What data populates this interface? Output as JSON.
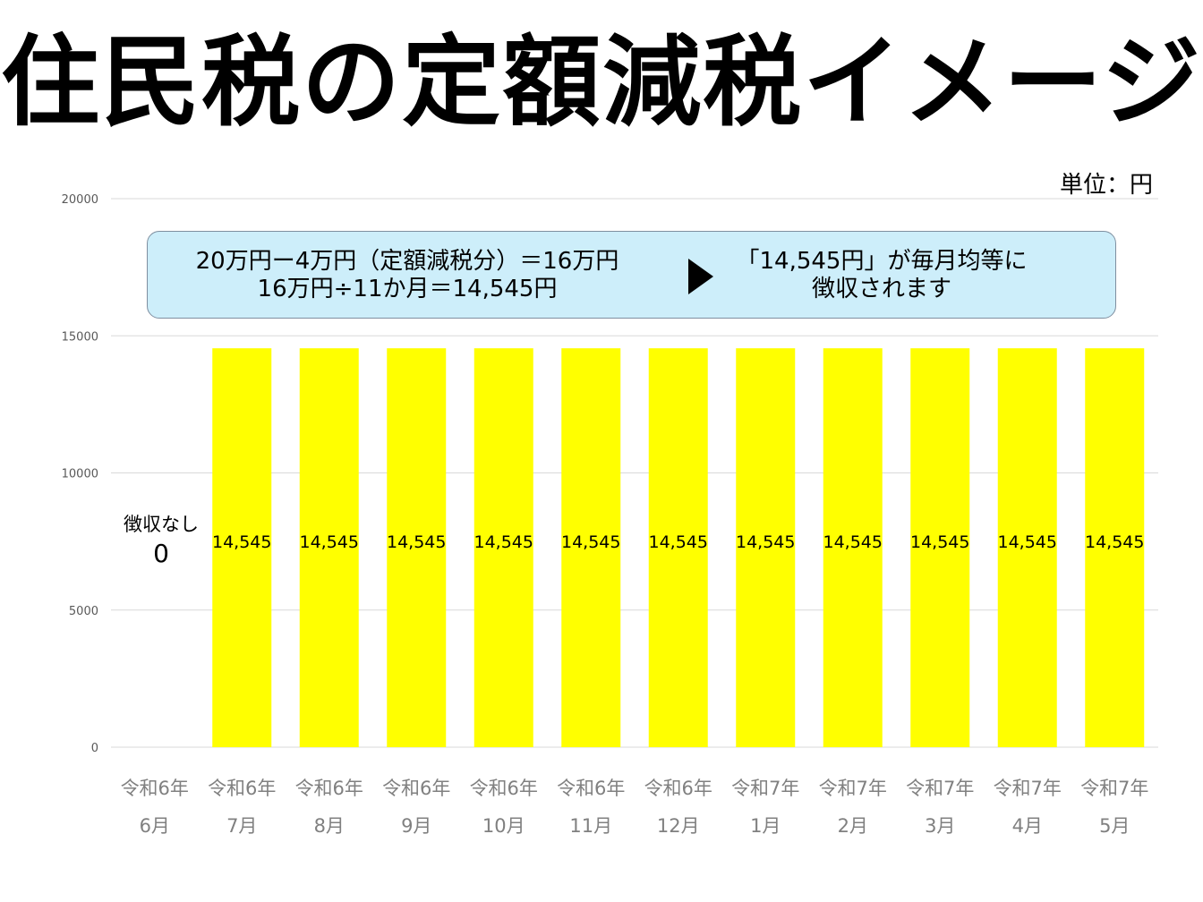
{
  "title": "住民税の定額減税イメージ",
  "unit": "単位：円",
  "callout": {
    "line1": "20万円ー4万円（定額減税分）＝16万円",
    "line2": "16万円÷11か月＝14,545円",
    "right_line1": "「14,545円」が毎月均等に",
    "right_line2": "徴収されます",
    "arrow_icon": "triangle-right-icon",
    "background": "#cdeefa"
  },
  "no_collection_label": "徴収なし",
  "zero_label": "0",
  "chart_data": {
    "type": "bar",
    "categories": [
      [
        "令和6年",
        "6月"
      ],
      [
        "令和6年",
        "7月"
      ],
      [
        "令和6年",
        "8月"
      ],
      [
        "令和6年",
        "9月"
      ],
      [
        "令和6年",
        "10月"
      ],
      [
        "令和6年",
        "11月"
      ],
      [
        "令和6年",
        "12月"
      ],
      [
        "令和7年",
        "1月"
      ],
      [
        "令和7年",
        "2月"
      ],
      [
        "令和7年",
        "3月"
      ],
      [
        "令和7年",
        "4月"
      ],
      [
        "令和7年",
        "5月"
      ]
    ],
    "values": [
      0,
      14545,
      14545,
      14545,
      14545,
      14545,
      14545,
      14545,
      14545,
      14545,
      14545,
      14545
    ],
    "data_labels": [
      "",
      "14,545",
      "14,545",
      "14,545",
      "14,545",
      "14,545",
      "14,545",
      "14,545",
      "14,545",
      "14,545",
      "14,545",
      "14,545"
    ],
    "ylim": [
      0,
      20000
    ],
    "yticks": [
      0,
      5000,
      10000,
      15000,
      20000
    ],
    "ytick_labels": [
      "0",
      "5000",
      "10000",
      "15000",
      "20000"
    ],
    "grid": true,
    "bar_color": "#ffff00",
    "label_value_level": 7500
  }
}
